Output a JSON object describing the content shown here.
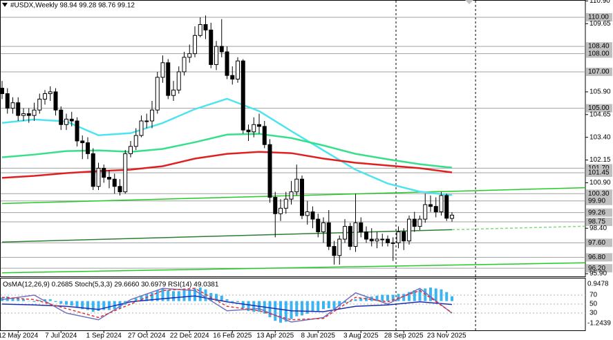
{
  "chart_data": {
    "type": "candlestick",
    "title": "#USDX,Weekly  98.94 99.28 98.76 99.12",
    "categories": [
      null,
      null,
      null,
      "12 May 2024",
      null,
      null,
      null,
      null,
      null,
      null,
      null,
      "7 Jul 2024",
      null,
      null,
      null,
      null,
      null,
      null,
      null,
      "1 Sep 2024",
      null,
      null,
      null,
      null,
      null,
      null,
      null,
      "27 Oct 2024",
      null,
      null,
      null,
      null,
      null,
      null,
      null,
      "22 Dec 2024",
      null,
      null,
      null,
      null,
      null,
      null,
      null,
      "16 Feb 2025",
      null,
      null,
      null,
      null,
      null,
      null,
      null,
      "13 Apr 2025",
      null,
      null,
      null,
      null,
      null,
      null,
      null,
      "8 Jun 2025",
      null,
      null,
      null,
      null,
      null,
      null,
      null,
      "3 Aug 2025",
      null,
      null,
      null,
      null,
      null,
      null,
      null,
      "28 Sep 2025",
      null,
      null,
      null,
      null,
      null,
      null,
      null,
      "23 Nov 2025",
      null
    ],
    "open": [
      106.1,
      105.8,
      105.0,
      105.3,
      104.6,
      104.7,
      104.6,
      104.9,
      105.5,
      105.8,
      105.9,
      104.9,
      104.1,
      104.4,
      104.3,
      103.2,
      103.1,
      102.5,
      100.7,
      101.7,
      101.2,
      101.1,
      100.7,
      100.4,
      102.5,
      102.9,
      103.5,
      104.3,
      104.3,
      104.9,
      106.7,
      107.5,
      105.7,
      106.0,
      107.0,
      107.8,
      108.0,
      109.0,
      109.6,
      109.3,
      107.4,
      108.4,
      108.1,
      106.8,
      106.6,
      107.6,
      103.8,
      103.7,
      104.1,
      104.0,
      103.0,
      100.1,
      99.2,
      99.5,
      100.0,
      100.4,
      101.1,
      99.1,
      99.3,
      98.9,
      98.2,
      98.7,
      97.4,
      96.9,
      97.8,
      98.5,
      97.4,
      98.7,
      98.2,
      97.8,
      97.7,
      97.8,
      97.8,
      97.6,
      97.6,
      98.2,
      97.7,
      98.9,
      98.5,
      98.9,
      99.7,
      99.6,
      99.3,
      100.2,
      98.94
    ],
    "high": [
      106.5,
      106.1,
      105.6,
      105.6,
      105.0,
      105.0,
      105.3,
      105.8,
      106.0,
      106.2,
      106.1,
      105.1,
      104.7,
      104.8,
      104.5,
      103.5,
      103.4,
      102.8,
      102.0,
      101.9,
      101.6,
      101.4,
      101.1,
      102.7,
      103.2,
      103.9,
      104.6,
      104.7,
      105.4,
      107.0,
      107.9,
      107.7,
      106.5,
      107.3,
      108.1,
      108.5,
      109.5,
      110.0,
      110.1,
      109.7,
      108.7,
      109.9,
      108.4,
      107.3,
      107.8,
      107.7,
      104.1,
      104.5,
      104.7,
      104.3,
      103.3,
      100.4,
      100.0,
      100.4,
      101.0,
      101.9,
      101.3,
      99.9,
      99.6,
      99.2,
      99.0,
      99.4,
      97.7,
      98.0,
      98.9,
      98.7,
      100.3,
      99.0,
      98.5,
      98.4,
      98.2,
      98.1,
      98.0,
      97.9,
      98.5,
      98.4,
      99.1,
      99.3,
      99.1,
      100.3,
      100.2,
      100.1,
      100.4,
      100.3,
      99.28
    ],
    "low": [
      105.5,
      104.7,
      104.7,
      104.3,
      104.3,
      104.2,
      104.3,
      104.7,
      105.2,
      105.4,
      104.6,
      103.8,
      103.8,
      104.0,
      102.9,
      102.2,
      102.2,
      100.5,
      100.5,
      100.9,
      100.6,
      100.3,
      100.2,
      100.3,
      102.3,
      102.7,
      103.4,
      103.9,
      103.9,
      104.7,
      106.4,
      105.5,
      105.4,
      105.8,
      106.8,
      107.5,
      107.8,
      108.9,
      108.8,
      107.2,
      107.1,
      107.8,
      106.6,
      106.3,
      106.4,
      103.6,
      103.2,
      103.4,
      103.6,
      102.8,
      99.8,
      97.9,
      98.8,
      99.2,
      99.7,
      100.2,
      98.9,
      98.6,
      98.4,
      97.9,
      97.6,
      97.2,
      96.4,
      96.4,
      97.6,
      97.2,
      97.1,
      97.9,
      97.6,
      97.4,
      97.3,
      97.4,
      97.4,
      96.6,
      97.3,
      97.2,
      97.5,
      98.2,
      98.3,
      98.7,
      99.3,
      99.0,
      99.1,
      98.8,
      98.76
    ],
    "close": [
      105.8,
      105.0,
      105.3,
      104.6,
      104.7,
      104.6,
      104.9,
      105.5,
      105.8,
      105.9,
      104.9,
      104.1,
      104.4,
      104.3,
      103.2,
      103.1,
      102.5,
      100.7,
      101.7,
      101.2,
      101.1,
      100.7,
      100.4,
      102.5,
      102.9,
      103.5,
      104.3,
      104.3,
      104.9,
      106.7,
      107.5,
      105.7,
      106.0,
      107.0,
      107.8,
      108.0,
      109.0,
      109.6,
      109.3,
      107.4,
      108.4,
      108.1,
      106.8,
      106.6,
      107.6,
      103.8,
      103.7,
      104.1,
      104.0,
      103.0,
      100.1,
      99.2,
      99.5,
      100.0,
      100.4,
      101.1,
      99.1,
      99.3,
      98.9,
      98.2,
      98.7,
      97.4,
      96.9,
      97.8,
      98.5,
      97.4,
      98.7,
      98.2,
      97.8,
      97.7,
      97.8,
      97.8,
      97.6,
      97.6,
      98.2,
      97.7,
      98.9,
      98.5,
      98.9,
      99.7,
      99.6,
      99.3,
      100.2,
      98.95,
      99.12
    ],
    "ylim": [
      95.75,
      110.95
    ],
    "yticks": [
      {
        "value": 95.9,
        "label": "95.90"
      },
      {
        "value": 98.4,
        "label": "98.40"
      },
      {
        "value": 100.9,
        "label": "100.90"
      },
      102.15,
      {
        "value": 103.4,
        "label": "103.40"
      },
      104.65,
      {
        "value": 105.9,
        "label": "105.90"
      },
      109.65,
      {
        "value": 110.9,
        "label": "110.90"
      }
    ],
    "levels": [
      {
        "value": 110,
        "label": "110.00"
      },
      {
        "value": 108.4,
        "label": "108.40"
      },
      {
        "value": 108,
        "label": "108.00"
      },
      {
        "value": 107,
        "label": "107.00"
      },
      {
        "value": 105,
        "label": "105.00"
      },
      {
        "value": 101.7,
        "label": "101.70"
      },
      101.45,
      {
        "value": 100.3,
        "label": "100.30"
      },
      {
        "value": 99.9,
        "label": "99.90"
      },
      99.26,
      98.75,
      {
        "value": 97.6,
        "label": "97.60"
      },
      {
        "value": 96.8,
        "label": "96.80"
      },
      {
        "value": 96.2,
        "label": "96.20"
      }
    ],
    "moving_averages": [
      {
        "color": "#4fe3f0",
        "x": [
          0,
          6,
          12,
          18,
          24,
          30,
          36,
          42,
          48,
          54,
          60,
          66,
          72,
          78,
          84
        ],
        "values": [
          104.19,
          104.38,
          104.27,
          103.51,
          103.63,
          104.19,
          104.95,
          105.52,
          104.84,
          103.74,
          102.68,
          101.62,
          100.86,
          100.41,
          100.22
        ]
      },
      {
        "color": "#36e08a",
        "x": [
          0,
          6,
          12,
          18,
          24,
          30,
          36,
          42,
          48,
          54,
          60,
          66,
          72,
          78,
          84
        ],
        "values": [
          102.3,
          102.45,
          102.64,
          102.68,
          102.6,
          102.76,
          103.13,
          103.55,
          103.59,
          103.36,
          102.95,
          102.49,
          102.19,
          101.92,
          101.73
        ]
      },
      {
        "color": "#e02020",
        "x": [
          0,
          6,
          12,
          18,
          24,
          30,
          36,
          42,
          48,
          54,
          60,
          66,
          72,
          78,
          84
        ],
        "values": [
          101.17,
          101.28,
          101.43,
          101.54,
          101.62,
          101.81,
          102.23,
          102.49,
          102.6,
          102.53,
          102.23,
          102.0,
          101.85,
          101.7,
          101.47
        ]
      }
    ],
    "trendlines": [
      {
        "color": "#22cc22",
        "x": [
          0,
          108.9
        ],
        "values": [
          99.76,
          100.63
        ]
      },
      {
        "color": "#2e7d2e",
        "x": [
          0,
          84
        ],
        "values": [
          97.64,
          98.32
        ]
      },
      {
        "color": "#7ddc7d",
        "dashed": true,
        "x": [
          84,
          108.9
        ],
        "values": [
          98.32,
          98.51
        ]
      },
      {
        "color": "#22cc22",
        "x": [
          0,
          108.9
        ],
        "values": [
          95.95,
          96.5
        ]
      }
    ],
    "vlines": [
      73.55,
      88.4
    ],
    "oscillator": {
      "title": "OsMA(12,26,9) 0.2685 Stoch(5,3,3) 29.6660 30.6979 RSI(14) 49.0381",
      "histogram": {
        "color": "#3cb4ef",
        "values": [
          0.2,
          0.25,
          0.2,
          0.15,
          0.1,
          0.0,
          -0.05,
          0.05,
          0.1,
          0.1,
          -0.05,
          -0.15,
          -0.2,
          -0.25,
          -0.35,
          -0.45,
          -0.5,
          -0.6,
          -0.55,
          -0.5,
          -0.5,
          -0.45,
          -0.4,
          -0.2,
          0.0,
          0.15,
          0.3,
          0.4,
          0.45,
          0.6,
          0.7,
          0.6,
          0.55,
          0.55,
          0.6,
          0.65,
          0.7,
          0.75,
          0.65,
          0.45,
          0.4,
          0.3,
          0.1,
          -0.05,
          -0.05,
          -0.4,
          -0.55,
          -0.6,
          -0.6,
          -0.7,
          -0.9,
          -1.1,
          -1.2,
          -1.15,
          -1.0,
          -0.85,
          -0.8,
          -0.7,
          -0.6,
          -0.55,
          -0.45,
          -0.4,
          -0.45,
          -0.3,
          -0.1,
          -0.05,
          0.1,
          0.15,
          0.2,
          0.25,
          0.3,
          0.35,
          0.35,
          0.35,
          0.4,
          0.4,
          0.5,
          0.6,
          0.65,
          0.7,
          0.75,
          0.7,
          0.65,
          0.5,
          0.2685
        ],
        "ylim": [
          -1.2439,
          0.9478
        ],
        "yticks": [
          -1.2439,
          0.9478
        ]
      },
      "ylim": [
        0,
        100
      ],
      "yticks": [
        30,
        50,
        70
      ],
      "x": [
        0,
        6,
        12,
        18,
        24,
        30,
        36,
        42,
        48,
        54,
        60,
        66,
        72,
        78,
        84
      ],
      "lines": [
        {
          "color": "#1b2bb0",
          "values": [
            50,
            48,
            45,
            38,
            55,
            62,
            68,
            55,
            45,
            35,
            33,
            45,
            48,
            55,
            49.0381
          ]
        },
        {
          "color": "#7070c0",
          "values": [
            60,
            70,
            30,
            15,
            60,
            85,
            80,
            35,
            40,
            10,
            20,
            75,
            50,
            85,
            29.666
          ]
        },
        {
          "color": "#e03030",
          "dashed": true,
          "values": [
            65,
            60,
            40,
            20,
            50,
            80,
            85,
            45,
            35,
            15,
            18,
            65,
            55,
            80,
            30.6979
          ]
        }
      ]
    }
  }
}
